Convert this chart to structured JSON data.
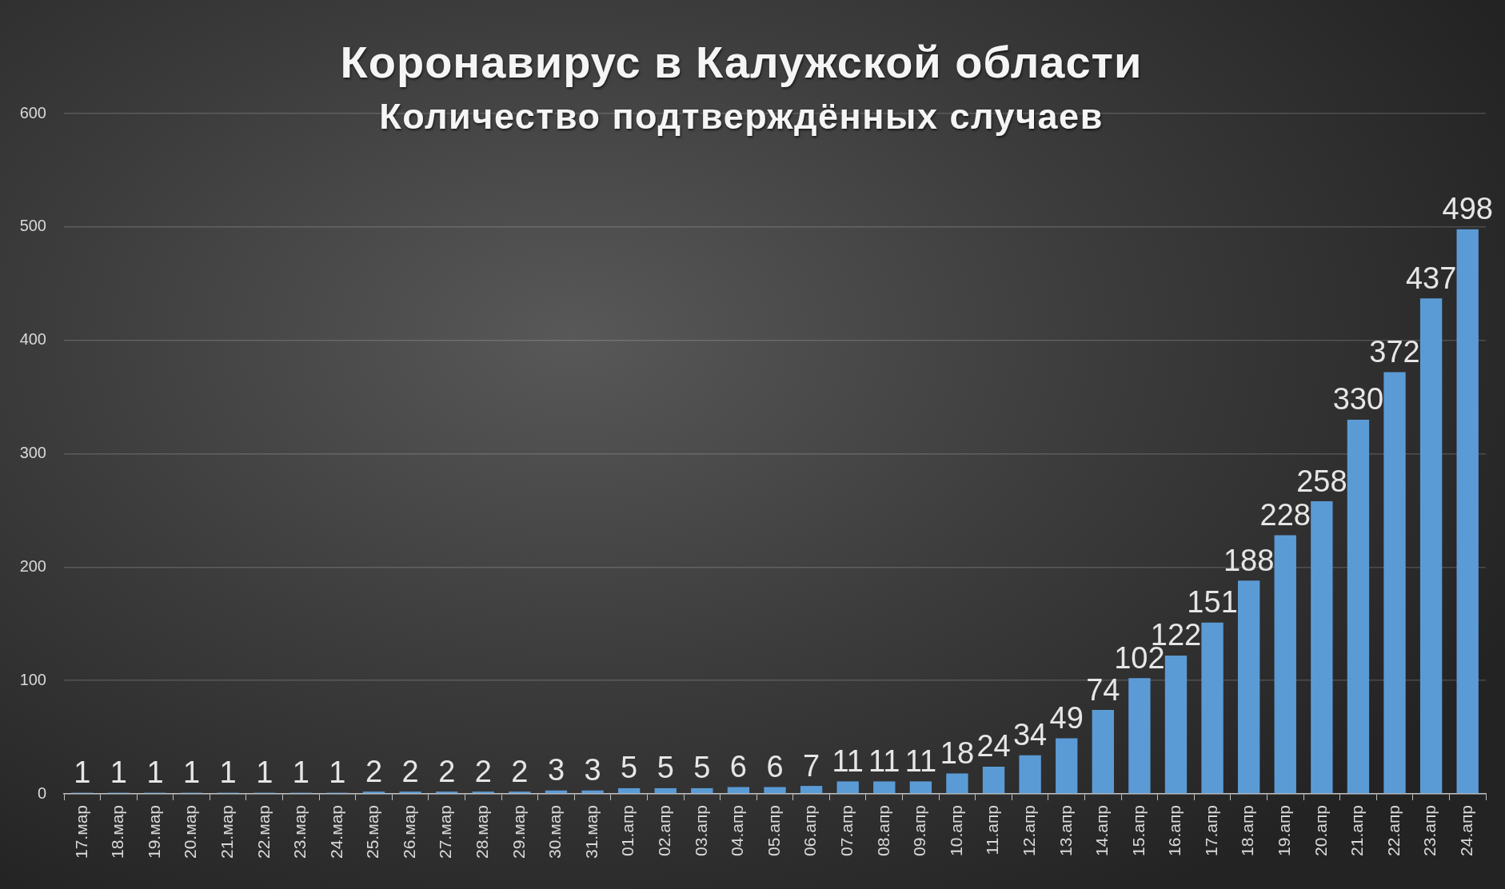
{
  "chart_data": {
    "type": "bar",
    "title": "Коронавирус в Калужской области",
    "subtitle": "Количество подтверждённых случаев",
    "categories": [
      "17.мар",
      "18.мар",
      "19.мар",
      "20.мар",
      "21.мар",
      "22.мар",
      "23.мар",
      "24.мар",
      "25.мар",
      "26.мар",
      "27.мар",
      "28.мар",
      "29.мар",
      "30.мар",
      "31.мар",
      "01.апр",
      "02.апр",
      "03.апр",
      "04.апр",
      "05.апр",
      "06.апр",
      "07.апр",
      "08.апр",
      "09.апр",
      "10.апр",
      "11.апр",
      "12.апр",
      "13.апр",
      "14.апр",
      "15.апр",
      "16.апр",
      "17.апр",
      "18.апр",
      "19.апр",
      "20.апр",
      "21.апр",
      "22.апр",
      "23.апр",
      "24.апр"
    ],
    "values": [
      1,
      1,
      1,
      1,
      1,
      1,
      1,
      1,
      2,
      2,
      2,
      2,
      2,
      3,
      3,
      5,
      5,
      5,
      6,
      6,
      7,
      11,
      11,
      11,
      18,
      24,
      34,
      49,
      74,
      102,
      122,
      151,
      188,
      228,
      258,
      330,
      372,
      437,
      498
    ],
    "color": "#5b9bd5",
    "ylim": [
      0,
      600
    ],
    "yticks": [
      0,
      100,
      200,
      300,
      400,
      500,
      600
    ],
    "grid": "y",
    "data_labels": true
  }
}
